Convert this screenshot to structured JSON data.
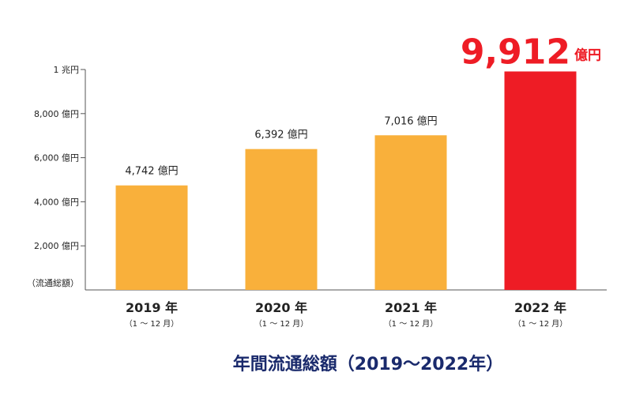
{
  "chart_data": {
    "type": "bar",
    "title": "年間流通総額（2019〜2022年）",
    "y_axis_label": "（流通総額）",
    "categories": [
      "2019 年",
      "2020 年",
      "2021 年",
      "2022 年"
    ],
    "category_sublabels": [
      "（1 ～ 12 月）",
      "（1 ～ 12 月）",
      "（1 ～ 12 月）",
      "（1 ～ 12 月）"
    ],
    "values": [
      4742,
      6392,
      7016,
      9912
    ],
    "value_labels": [
      "4,742 億円",
      "6,392 億円",
      "7,016 億円",
      "9,912"
    ],
    "highlight_unit": "億円",
    "colors": [
      "#f9b03b",
      "#f9b03b",
      "#f9b03b",
      "#ee1c25"
    ],
    "ylim": [
      0,
      10000
    ],
    "yticks": [
      {
        "value": 2000,
        "label": "2,000 億円"
      },
      {
        "value": 4000,
        "label": "4,000 億円"
      },
      {
        "value": 6000,
        "label": "6,000 億円"
      },
      {
        "value": 8000,
        "label": "8,000 億円"
      },
      {
        "value": 10000,
        "label": "1 兆円"
      }
    ]
  }
}
